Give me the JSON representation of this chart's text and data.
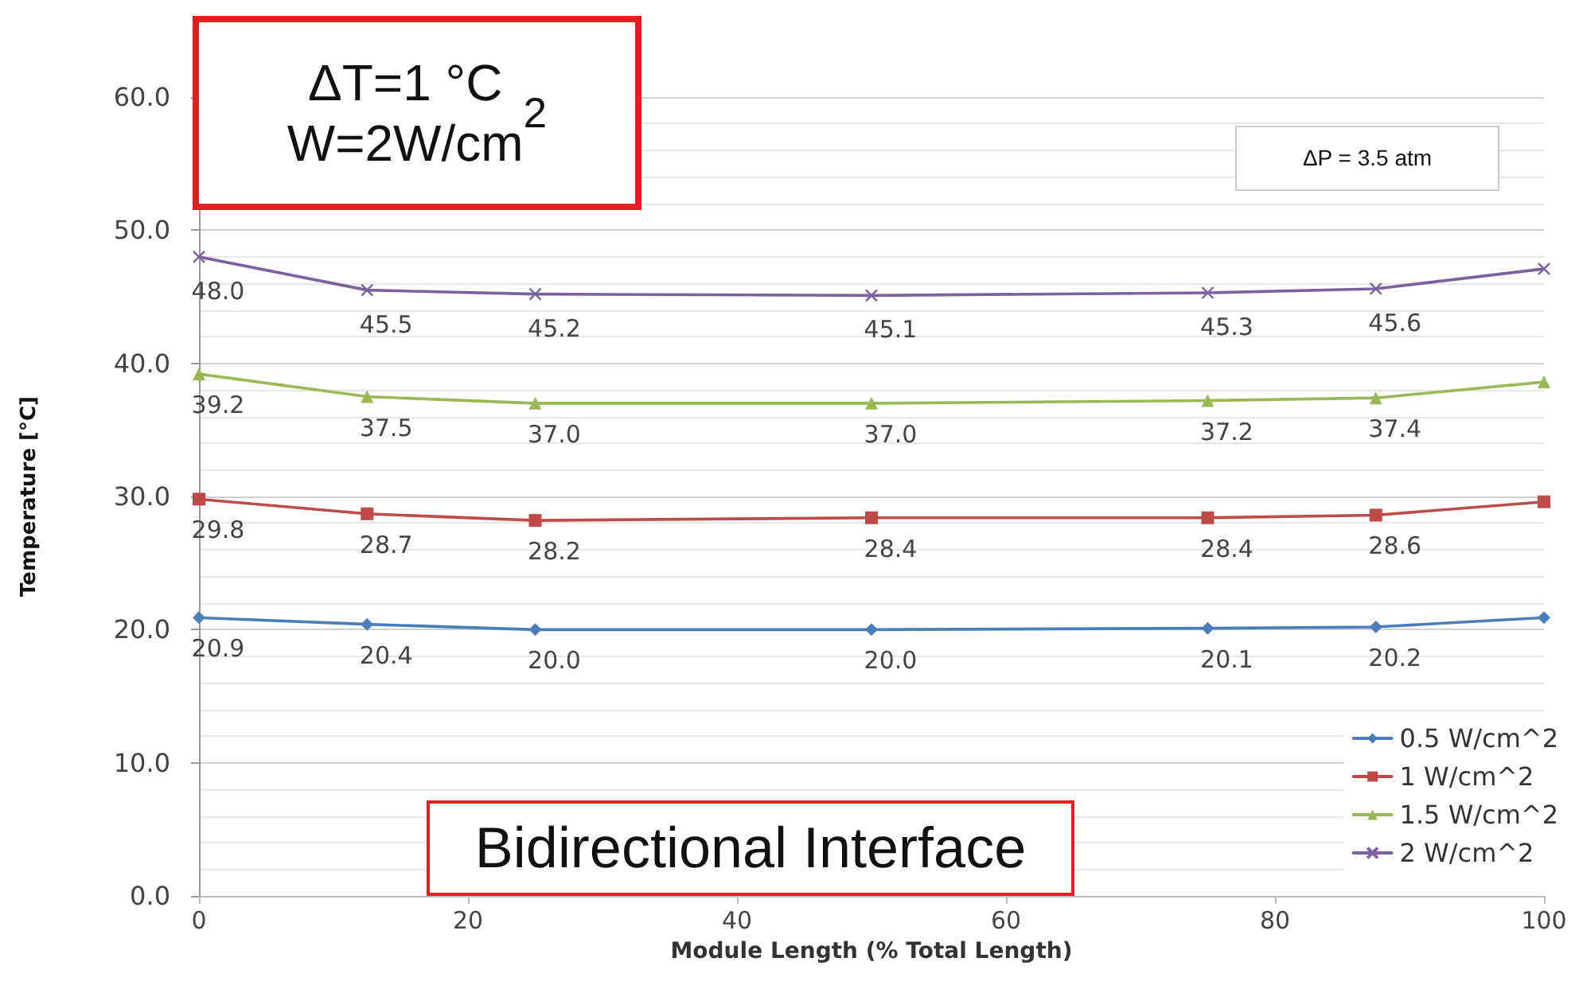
{
  "chart_data": {
    "type": "line",
    "xlabel": "Module Length (% Total Length)",
    "ylabel": "Temperature [°C]",
    "x": [
      0,
      12.5,
      25,
      50,
      75,
      87.5,
      100
    ],
    "xlim": [
      0,
      100
    ],
    "xticks": [
      0,
      20,
      40,
      60,
      80,
      100
    ],
    "ylim": [
      0,
      60
    ],
    "yticks": [
      {
        "value": 0,
        "label": "0.0"
      },
      {
        "value": 10,
        "label": "10.0"
      },
      {
        "value": 20,
        "label": "20.0"
      },
      {
        "value": 30,
        "label": "30.0"
      },
      {
        "value": 40,
        "label": "40.0"
      },
      {
        "value": 50,
        "label": "50.0"
      },
      {
        "value": 60,
        "label": "60.0"
      }
    ],
    "grid": "y",
    "legend": "bottom right",
    "series": [
      {
        "name": "0.5 W/cm^2",
        "color": "#4a7ebb",
        "marker": "diamond",
        "values": [
          20.9,
          20.4,
          20.0,
          20.0,
          20.1,
          20.2,
          20.9
        ],
        "value_labels": [
          "20.9",
          "20.4",
          "20.0",
          "20.0",
          "20.1",
          "20.2",
          null
        ]
      },
      {
        "name": "1 W/cm^2",
        "color": "#be4b48",
        "marker": "square",
        "values": [
          29.8,
          28.7,
          28.2,
          28.4,
          28.4,
          28.6,
          29.6
        ],
        "value_labels": [
          "29.8",
          "28.7",
          "28.2",
          "28.4",
          "28.4",
          "28.6",
          null
        ]
      },
      {
        "name": "1.5 W/cm^2",
        "color": "#98b954",
        "marker": "triangle",
        "values": [
          39.2,
          37.5,
          37.0,
          37.0,
          37.2,
          37.4,
          38.6
        ],
        "value_labels": [
          "39.2",
          "37.5",
          "37.0",
          "37.0",
          "37.2",
          "37.4",
          null
        ]
      },
      {
        "name": "2 W/cm^2",
        "color": "#7d60a0",
        "marker": "cross",
        "values": [
          48.0,
          45.5,
          45.2,
          45.1,
          45.3,
          45.6,
          47.1
        ],
        "value_labels": [
          "48.0",
          "45.5",
          "45.2",
          "45.1",
          "45.3",
          "45.6",
          null
        ]
      }
    ],
    "annotations": [
      "ΔT=1 °C\nW=2W/cm$^{2}$",
      "ΔP = 3.5 atm",
      "Bidirectional Interface"
    ]
  }
}
